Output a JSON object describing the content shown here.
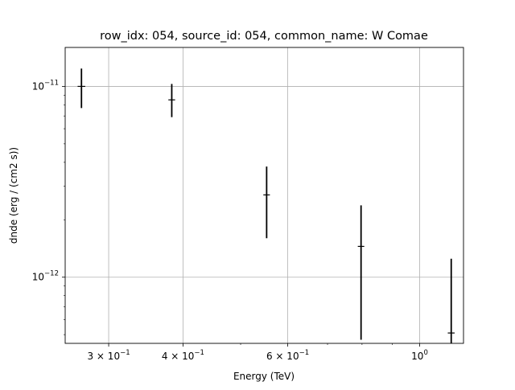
{
  "chart_data": {
    "type": "scatter",
    "title": "row_idx: 054, source_id: 054, common_name: W Comae",
    "xlabel": "Energy (TeV)",
    "ylabel": "dnde (erg / (cm2 s))",
    "xscale": "log",
    "yscale": "log",
    "xlim": [
      0.2535,
      1.185
    ],
    "ylim": [
      4.5e-13,
      1.6e-11
    ],
    "grid": "major",
    "x_ticks": [
      {
        "value": 0.3,
        "base": "3 × 10",
        "exp": "−1"
      },
      {
        "value": 0.4,
        "base": "4 × 10",
        "exp": "−1"
      },
      {
        "value": 0.6,
        "base": "6 × 10",
        "exp": "−1"
      },
      {
        "value": 1.0,
        "base": "10",
        "exp": "0"
      }
    ],
    "y_ticks": [
      {
        "value": 1e-11,
        "base": "10",
        "exp": "−11"
      },
      {
        "value": 1e-12,
        "base": "10",
        "exp": "−12"
      }
    ],
    "points": [
      {
        "x": 0.27,
        "y": 1e-11,
        "y_low": 7.7e-12,
        "y_high": 1.24e-11,
        "x_halfwidth": 0.004
      },
      {
        "x": 0.383,
        "y": 8.5e-12,
        "y_low": 6.9e-12,
        "y_high": 1.03e-11,
        "x_halfwidth": 0.005
      },
      {
        "x": 0.553,
        "y": 2.7e-12,
        "y_low": 1.6e-12,
        "y_high": 3.8e-12,
        "x_halfwidth": 0.007
      },
      {
        "x": 0.797,
        "y": 1.45e-12,
        "y_low": 4.7e-13,
        "y_high": 2.38e-12,
        "x_halfwidth": 0.01
      },
      {
        "x": 1.13,
        "y": 5.1e-13,
        "y_low": 4.5e-13,
        "y_high": 1.25e-12,
        "x_halfwidth": 0.015
      }
    ],
    "colors": {
      "markers": "#000000",
      "grid": "#b0b0b0",
      "axes": "#000000"
    }
  }
}
